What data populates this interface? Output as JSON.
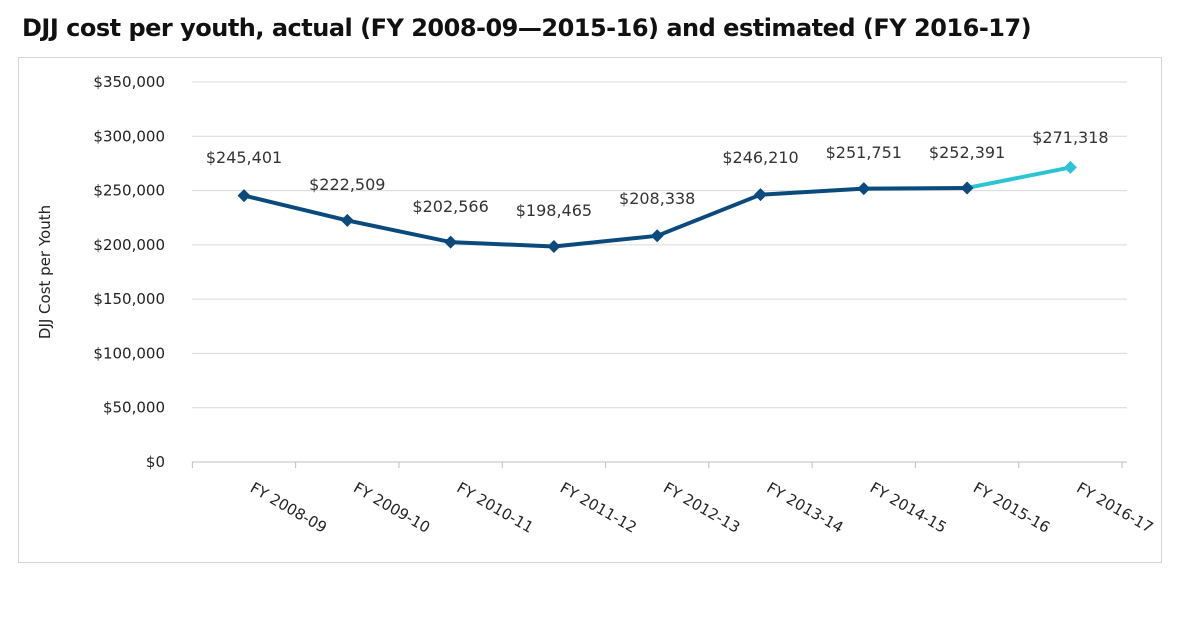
{
  "chart_data": {
    "type": "line",
    "title": "DJJ cost per youth, actual (FY 2008-09—2015-16) and estimated (FY 2016-17)",
    "ylabel": "DJJ Cost per Youth",
    "xlabel": "",
    "ylim": [
      0,
      350000
    ],
    "yticks": [
      0,
      50000,
      100000,
      150000,
      200000,
      250000,
      300000,
      350000
    ],
    "ytick_labels": [
      "$0",
      "$50,000",
      "$100,000",
      "$150,000",
      "$200,000",
      "$250,000",
      "$300,000",
      "$350,000"
    ],
    "categories": [
      "FY 2008-09",
      "FY 2009-10",
      "FY 2010-11",
      "FY 2011-12",
      "FY 2012-13",
      "FY 2013-14",
      "FY 2014-15",
      "FY 2015-16",
      "FY 2016-17"
    ],
    "values": [
      245401,
      222509,
      202566,
      198465,
      208338,
      246210,
      251751,
      252391,
      271318
    ],
    "data_labels": [
      "$245,401",
      "$222,509",
      "$202,566",
      "$198,465",
      "$208,338",
      "$246,210",
      "$251,751",
      "$252,391",
      "$271,318"
    ],
    "actual_last_index": 7,
    "grid": true,
    "legend": "none",
    "colors": {
      "actual": "#0b4a7d",
      "estimated": "#2cc4d2",
      "grid": "#d9d9d9",
      "axis": "#bfbfbf"
    }
  }
}
